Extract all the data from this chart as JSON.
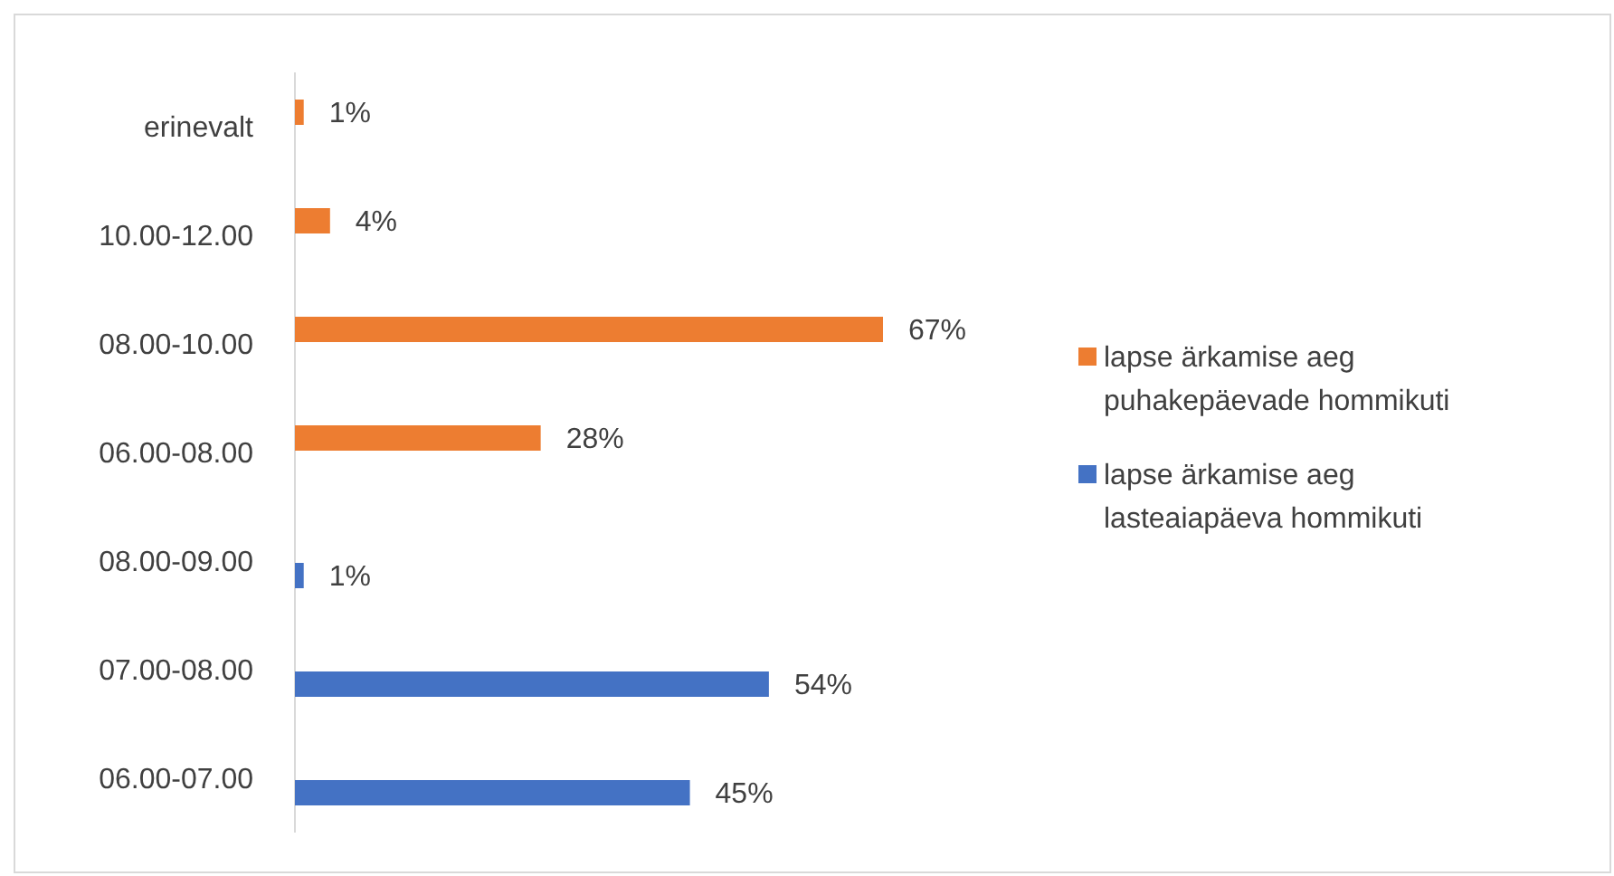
{
  "chart_data": {
    "type": "bar",
    "orientation": "horizontal",
    "relative": false,
    "legend": "right",
    "categories": [
      "erinevalt",
      "10.00-12.00",
      "08.00-10.00",
      "06.00-08.00",
      "08.00-09.00",
      "07.00-08.00",
      "06.00-07.00"
    ],
    "series": [
      {
        "name": "lapse ärkamise aeg puhakepäevade hommikuti",
        "color": "#ed7d31",
        "values": [
          1,
          4,
          67,
          28,
          null,
          null,
          null
        ],
        "value_labels": [
          "1%",
          "4%",
          "67%",
          "28%",
          null,
          null,
          null
        ]
      },
      {
        "name": "lapse ärkamise aeg lasteaiapäeva hommikuti",
        "color": "#4472c4",
        "values": [
          null,
          null,
          null,
          null,
          1,
          54,
          45
        ],
        "value_labels": [
          null,
          null,
          null,
          null,
          "1%",
          "54%",
          "45%"
        ]
      }
    ]
  }
}
